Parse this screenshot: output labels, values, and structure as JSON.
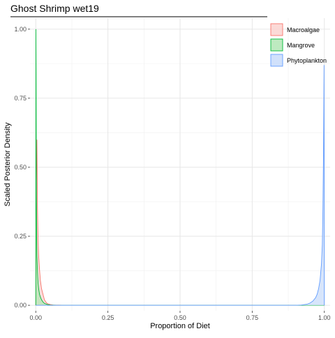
{
  "chart_data": {
    "type": "area",
    "title": "Ghost Shrimp wet19",
    "xlabel": "Proportion of Diet",
    "ylabel": "Scaled Posterior Density",
    "xlim": [
      -0.02,
      1.02
    ],
    "ylim": [
      -0.02,
      1.04
    ],
    "x_ticks": [
      0.0,
      0.25,
      0.5,
      0.75,
      1.0
    ],
    "x_tick_labels": [
      "0.00",
      "0.25",
      "0.50",
      "0.75",
      "1.00"
    ],
    "y_ticks": [
      0.0,
      0.25,
      0.5,
      0.75,
      1.0
    ],
    "y_tick_labels": [
      "0.00",
      "0.25",
      "0.50",
      "0.75",
      "1.00"
    ],
    "grid": true,
    "legend_position": "top-right",
    "series": [
      {
        "name": "Macroalgae",
        "stroke": "#F8766D",
        "fill": "#FAD3D0",
        "x": [
          0.0,
          0.002,
          0.004,
          0.006,
          0.008,
          0.01,
          0.013,
          0.016,
          0.02,
          0.025,
          0.03,
          0.035,
          0.04,
          0.05,
          0.06,
          0.08,
          0.1,
          1.0
        ],
        "y": [
          0.0,
          0.45,
          0.6,
          0.35,
          0.24,
          0.18,
          0.13,
          0.09,
          0.06,
          0.04,
          0.02,
          0.012,
          0.006,
          0.003,
          0.001,
          0.0005,
          0.0,
          0.0
        ]
      },
      {
        "name": "Mangrove",
        "stroke": "#00BA38",
        "fill": "#B3E6B5",
        "x": [
          0.0,
          0.0005,
          0.001,
          0.002,
          0.003,
          0.004,
          0.006,
          0.008,
          0.01,
          0.013,
          0.016,
          0.02,
          0.025,
          0.03,
          0.04,
          0.05,
          0.07,
          0.1,
          1.0
        ],
        "y": [
          0.0,
          1.0,
          0.86,
          0.4,
          0.25,
          0.18,
          0.12,
          0.08,
          0.06,
          0.04,
          0.03,
          0.02,
          0.012,
          0.007,
          0.003,
          0.001,
          0.0003,
          0.0,
          0.0
        ]
      },
      {
        "name": "Phytoplankton",
        "stroke": "#619CFF",
        "fill": "#C9DCFA",
        "x": [
          0.0,
          0.9,
          0.92,
          0.94,
          0.95,
          0.96,
          0.97,
          0.975,
          0.98,
          0.985,
          0.99,
          0.993,
          0.995,
          0.997,
          0.998,
          0.999,
          1.0
        ],
        "y": [
          0.0,
          0.0,
          0.001,
          0.004,
          0.008,
          0.015,
          0.028,
          0.04,
          0.06,
          0.09,
          0.15,
          0.22,
          0.35,
          0.55,
          0.7,
          0.87,
          0.0
        ]
      }
    ]
  }
}
